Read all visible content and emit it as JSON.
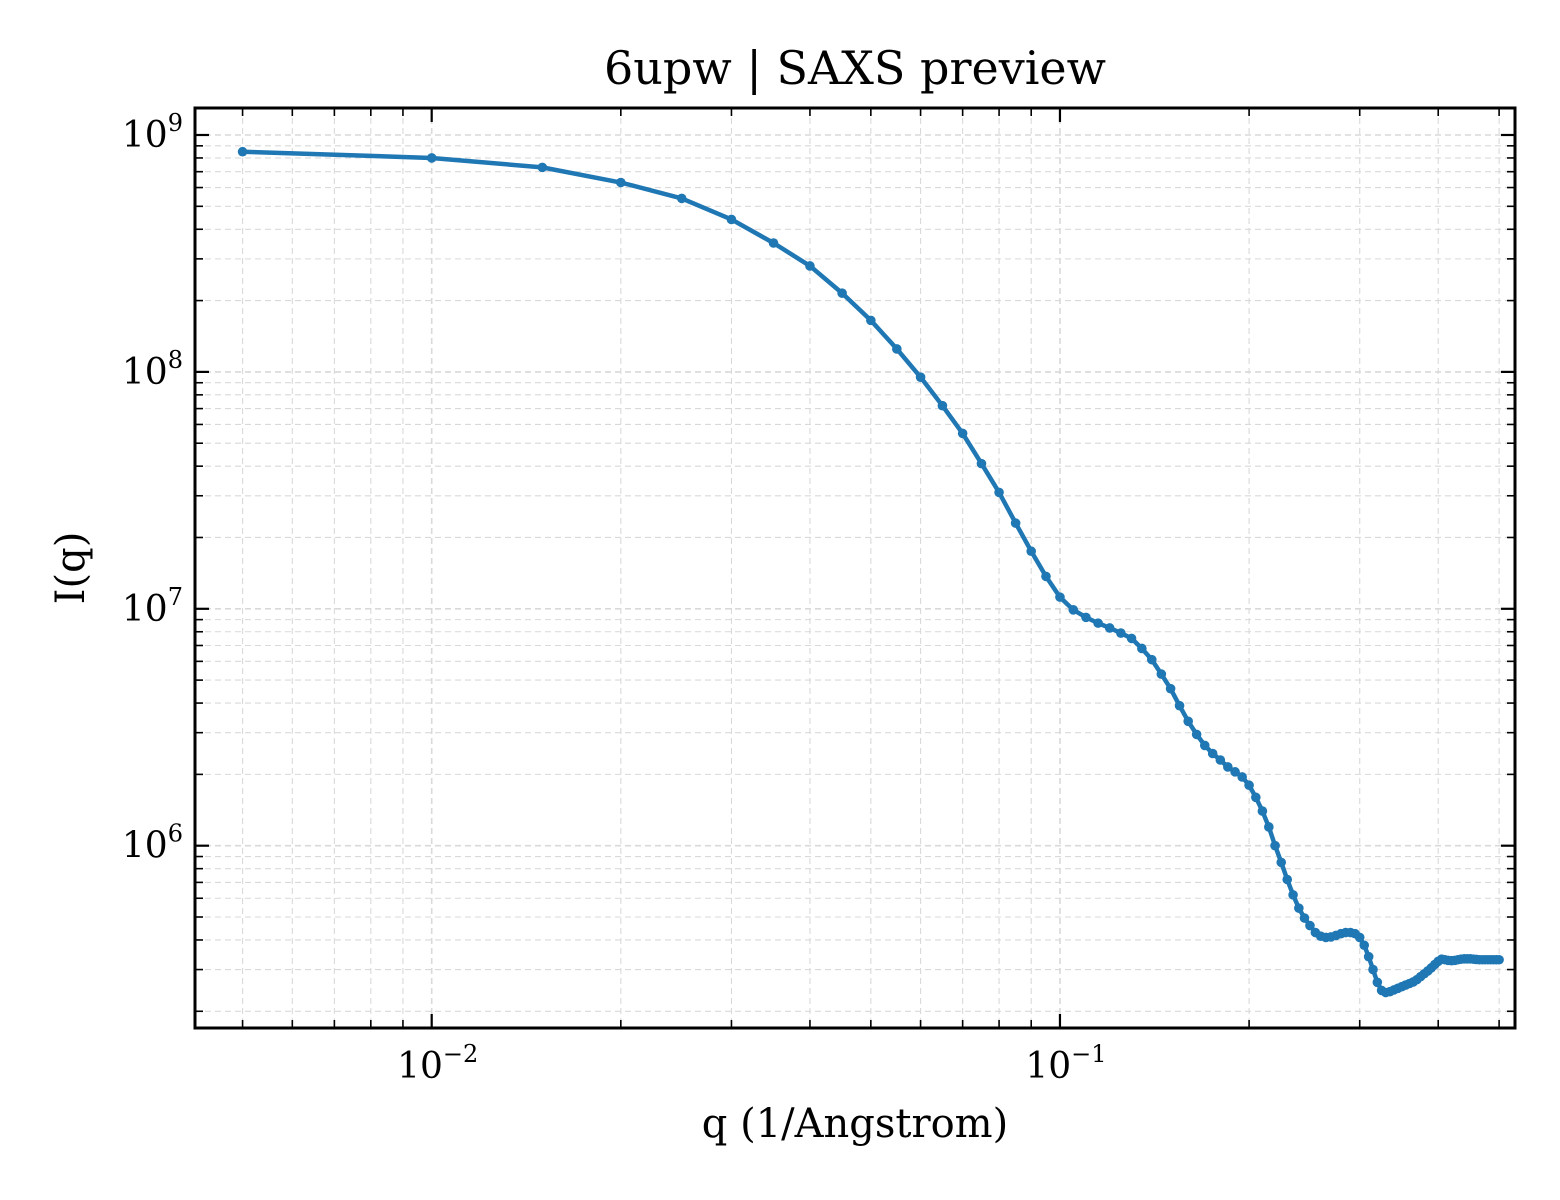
{
  "chart_data": {
    "type": "line",
    "title": "6upw | SAXS preview",
    "xlabel": "q (1/Angstrom)",
    "ylabel": "I(q)",
    "xscale": "log",
    "yscale": "log",
    "xlim": [
      0.0042,
      0.53
    ],
    "ylim": [
      170000,
      1300000000
    ],
    "grid": true,
    "legend": "none",
    "colors": {
      "series": "#1f77b4",
      "grid": "#d9d9d9",
      "axes": "#000000"
    },
    "x_ticks": [
      {
        "base": "10",
        "exp": "−2",
        "value": 0.01
      },
      {
        "base": "10",
        "exp": "−1",
        "value": 0.1
      }
    ],
    "y_ticks": [
      {
        "base": "10",
        "exp": "6",
        "value": 1000000
      },
      {
        "base": "10",
        "exp": "7",
        "value": 10000000
      },
      {
        "base": "10",
        "exp": "8",
        "value": 100000000
      },
      {
        "base": "10",
        "exp": "9",
        "value": 1000000000
      }
    ],
    "series": [
      {
        "x": [
          0.005,
          0.01,
          0.015,
          0.02,
          0.025,
          0.03,
          0.035,
          0.04,
          0.045,
          0.05,
          0.055,
          0.06,
          0.065,
          0.07,
          0.075,
          0.08,
          0.085,
          0.09,
          0.095,
          0.1,
          0.105,
          0.11,
          0.115,
          0.12,
          0.125,
          0.13,
          0.135,
          0.14,
          0.145,
          0.15,
          0.155,
          0.16,
          0.165,
          0.17,
          0.175,
          0.18,
          0.185,
          0.19,
          0.195,
          0.2,
          0.205,
          0.21,
          0.215,
          0.22,
          0.225,
          0.23,
          0.235,
          0.24,
          0.245,
          0.25,
          0.255,
          0.26,
          0.265,
          0.27,
          0.275,
          0.28,
          0.285,
          0.29,
          0.295,
          0.3,
          0.305,
          0.31,
          0.315,
          0.32,
          0.325,
          0.33,
          0.335,
          0.34,
          0.345,
          0.35,
          0.355,
          0.36,
          0.365,
          0.37,
          0.375,
          0.38,
          0.385,
          0.39,
          0.395,
          0.4,
          0.405,
          0.41,
          0.415,
          0.42,
          0.425,
          0.43,
          0.435,
          0.44,
          0.445,
          0.45,
          0.455,
          0.46,
          0.465,
          0.47,
          0.475,
          0.48,
          0.485,
          0.49,
          0.495,
          0.5
        ],
        "y": [
          850000000,
          800000000,
          730000000,
          630000000,
          540000000,
          440000000,
          350000000,
          280000000,
          215000000,
          165000000,
          125000000,
          95000000,
          72000000,
          55000000,
          41000000,
          31000000,
          23000000,
          17500000,
          13700000,
          11200000,
          9900000,
          9200000,
          8700000,
          8300000,
          7900000,
          7500000,
          6800000,
          6100000,
          5300000,
          4600000,
          3900000,
          3350000,
          2950000,
          2650000,
          2450000,
          2300000,
          2150000,
          2050000,
          1950000,
          1800000,
          1600000,
          1400000,
          1200000,
          1000000,
          850000,
          720000,
          620000,
          545000,
          495000,
          460000,
          430000,
          415000,
          410000,
          412000,
          418000,
          425000,
          430000,
          430000,
          425000,
          410000,
          380000,
          340000,
          300000,
          265000,
          245000,
          240000,
          242000,
          246000,
          250000,
          254000,
          258000,
          262000,
          266000,
          272000,
          280000,
          288000,
          296000,
          305000,
          315000,
          325000,
          332000,
          330000,
          328000,
          327000,
          328000,
          330000,
          332000,
          333000,
          333000,
          333000,
          332000,
          331000,
          330000,
          330000,
          330000,
          330000,
          330000,
          330000,
          330000,
          330000
        ]
      }
    ]
  }
}
